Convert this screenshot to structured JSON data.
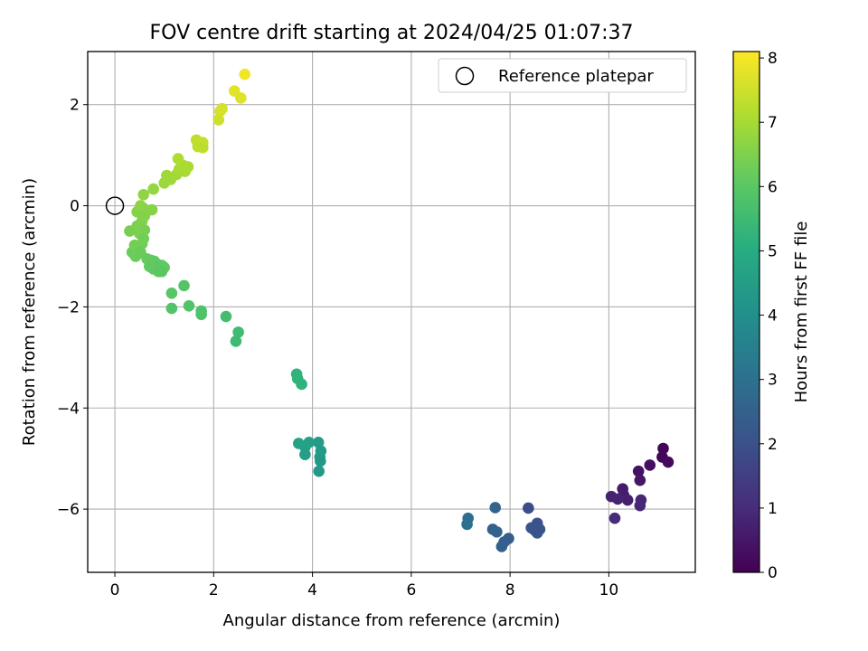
{
  "chart_data": {
    "type": "scatter",
    "title": "FOV centre drift starting at 2024/04/25 01:07:37",
    "xlabel": "Angular distance from reference (arcmin)",
    "ylabel": "Rotation from reference (arcmin)",
    "xlim": [
      -0.55,
      11.75
    ],
    "ylim": [
      -7.25,
      3.05
    ],
    "xticks": [
      0,
      2,
      4,
      6,
      8,
      10
    ],
    "yticks": [
      -6,
      -4,
      -2,
      0,
      2
    ],
    "grid": true,
    "legend": {
      "position": "top-right",
      "entries": [
        "Reference platepar"
      ]
    },
    "reference_point": {
      "x": 0,
      "y": 0,
      "label": "Reference platepar"
    },
    "colorbar": {
      "label": "Hours from first FF file",
      "min": 0,
      "max": 8.1,
      "ticks": [
        0,
        1,
        2,
        3,
        4,
        5,
        6,
        7,
        8
      ],
      "colormap": "viridis"
    },
    "points": [
      {
        "x": 11.1,
        "y": -4.8,
        "h": 0.1
      },
      {
        "x": 11.08,
        "y": -4.97,
        "h": 0.15
      },
      {
        "x": 11.2,
        "y": -5.07,
        "h": 0.2
      },
      {
        "x": 10.83,
        "y": -5.13,
        "h": 0.3
      },
      {
        "x": 10.6,
        "y": -5.25,
        "h": 0.4
      },
      {
        "x": 10.63,
        "y": -5.43,
        "h": 0.5
      },
      {
        "x": 10.28,
        "y": -5.6,
        "h": 0.6
      },
      {
        "x": 10.3,
        "y": -5.72,
        "h": 0.65
      },
      {
        "x": 10.38,
        "y": -5.82,
        "h": 0.7
      },
      {
        "x": 10.05,
        "y": -5.75,
        "h": 0.75
      },
      {
        "x": 10.18,
        "y": -5.8,
        "h": 0.8
      },
      {
        "x": 10.65,
        "y": -5.82,
        "h": 0.85
      },
      {
        "x": 10.63,
        "y": -5.93,
        "h": 0.9
      },
      {
        "x": 10.12,
        "y": -6.18,
        "h": 0.95
      },
      {
        "x": 8.37,
        "y": -5.98,
        "h": 1.9
      },
      {
        "x": 8.55,
        "y": -6.28,
        "h": 2.0
      },
      {
        "x": 8.43,
        "y": -6.37,
        "h": 2.05
      },
      {
        "x": 8.6,
        "y": -6.4,
        "h": 2.1
      },
      {
        "x": 8.55,
        "y": -6.47,
        "h": 2.15
      },
      {
        "x": 8.5,
        "y": -6.42,
        "h": 2.1
      },
      {
        "x": 7.7,
        "y": -5.97,
        "h": 2.6
      },
      {
        "x": 7.65,
        "y": -6.4,
        "h": 2.5
      },
      {
        "x": 7.73,
        "y": -6.45,
        "h": 2.55
      },
      {
        "x": 7.97,
        "y": -6.58,
        "h": 2.4
      },
      {
        "x": 7.88,
        "y": -6.65,
        "h": 2.45
      },
      {
        "x": 7.83,
        "y": -6.74,
        "h": 2.5
      },
      {
        "x": 7.15,
        "y": -6.18,
        "h": 2.9
      },
      {
        "x": 7.13,
        "y": -6.3,
        "h": 2.95
      },
      {
        "x": 4.17,
        "y": -4.85,
        "h": 4.4
      },
      {
        "x": 4.15,
        "y": -4.97,
        "h": 4.4
      },
      {
        "x": 4.12,
        "y": -4.68,
        "h": 4.45
      },
      {
        "x": 4.16,
        "y": -5.05,
        "h": 4.3
      },
      {
        "x": 4.13,
        "y": -5.25,
        "h": 4.35
      },
      {
        "x": 3.93,
        "y": -4.68,
        "h": 4.55
      },
      {
        "x": 3.85,
        "y": -4.77,
        "h": 4.6
      },
      {
        "x": 3.85,
        "y": -4.92,
        "h": 4.5
      },
      {
        "x": 3.72,
        "y": -4.7,
        "h": 4.65
      },
      {
        "x": 3.68,
        "y": -3.33,
        "h": 5.2
      },
      {
        "x": 3.7,
        "y": -3.42,
        "h": 5.25
      },
      {
        "x": 3.78,
        "y": -3.53,
        "h": 5.2
      },
      {
        "x": 2.25,
        "y": -2.19,
        "h": 5.6
      },
      {
        "x": 2.5,
        "y": -2.5,
        "h": 5.55
      },
      {
        "x": 2.45,
        "y": -2.68,
        "h": 5.5
      },
      {
        "x": 1.4,
        "y": -1.58,
        "h": 5.9
      },
      {
        "x": 1.15,
        "y": -1.73,
        "h": 5.95
      },
      {
        "x": 1.15,
        "y": -2.03,
        "h": 5.85
      },
      {
        "x": 1.5,
        "y": -1.98,
        "h": 5.85
      },
      {
        "x": 1.75,
        "y": -2.08,
        "h": 5.8
      },
      {
        "x": 1.75,
        "y": -2.15,
        "h": 5.8
      },
      {
        "x": 0.73,
        "y": -1.08,
        "h": 6.0
      },
      {
        "x": 0.8,
        "y": -1.1,
        "h": 6.05
      },
      {
        "x": 0.85,
        "y": -1.15,
        "h": 6.1
      },
      {
        "x": 0.9,
        "y": -1.2,
        "h": 6.0
      },
      {
        "x": 0.95,
        "y": -1.18,
        "h": 6.05
      },
      {
        "x": 1.0,
        "y": -1.22,
        "h": 6.1
      },
      {
        "x": 0.78,
        "y": -1.25,
        "h": 6.0
      },
      {
        "x": 0.88,
        "y": -1.3,
        "h": 6.05
      },
      {
        "x": 0.65,
        "y": -1.05,
        "h": 6.15
      },
      {
        "x": 0.95,
        "y": -1.3,
        "h": 6.0
      },
      {
        "x": 0.7,
        "y": -1.2,
        "h": 6.1
      },
      {
        "x": 0.35,
        "y": -0.92,
        "h": 6.2
      },
      {
        "x": 0.42,
        "y": -1.0,
        "h": 6.25
      },
      {
        "x": 0.55,
        "y": -0.75,
        "h": 6.3
      },
      {
        "x": 0.48,
        "y": -0.8,
        "h": 6.3
      },
      {
        "x": 0.4,
        "y": -0.78,
        "h": 6.35
      },
      {
        "x": 0.52,
        "y": -0.92,
        "h": 6.2
      },
      {
        "x": 0.3,
        "y": -0.5,
        "h": 6.4
      },
      {
        "x": 0.45,
        "y": -0.4,
        "h": 6.45
      },
      {
        "x": 0.55,
        "y": -0.3,
        "h": 6.5
      },
      {
        "x": 0.6,
        "y": -0.48,
        "h": 6.4
      },
      {
        "x": 0.5,
        "y": -0.55,
        "h": 6.45
      },
      {
        "x": 0.58,
        "y": -0.65,
        "h": 6.35
      },
      {
        "x": 0.45,
        "y": -0.12,
        "h": 6.55
      },
      {
        "x": 0.58,
        "y": -0.05,
        "h": 6.6
      },
      {
        "x": 0.52,
        "y": 0.0,
        "h": 6.65
      },
      {
        "x": 0.75,
        "y": -0.08,
        "h": 6.6
      },
      {
        "x": 0.6,
        "y": -0.2,
        "h": 6.55
      },
      {
        "x": 0.58,
        "y": 0.22,
        "h": 6.7
      },
      {
        "x": 0.78,
        "y": 0.33,
        "h": 6.75
      },
      {
        "x": 1.0,
        "y": 0.45,
        "h": 6.85
      },
      {
        "x": 1.05,
        "y": 0.6,
        "h": 6.9
      },
      {
        "x": 1.13,
        "y": 0.52,
        "h": 6.9
      },
      {
        "x": 1.25,
        "y": 0.62,
        "h": 6.95
      },
      {
        "x": 1.3,
        "y": 0.72,
        "h": 7.0
      },
      {
        "x": 1.42,
        "y": 0.68,
        "h": 7.0
      },
      {
        "x": 1.38,
        "y": 0.8,
        "h": 7.05
      },
      {
        "x": 1.48,
        "y": 0.77,
        "h": 7.05
      },
      {
        "x": 1.28,
        "y": 0.93,
        "h": 7.1
      },
      {
        "x": 1.65,
        "y": 1.3,
        "h": 7.3
      },
      {
        "x": 1.7,
        "y": 1.22,
        "h": 7.35
      },
      {
        "x": 1.78,
        "y": 1.25,
        "h": 7.35
      },
      {
        "x": 1.68,
        "y": 1.17,
        "h": 7.3
      },
      {
        "x": 1.78,
        "y": 1.15,
        "h": 7.3
      },
      {
        "x": 2.1,
        "y": 1.7,
        "h": 7.5
      },
      {
        "x": 2.13,
        "y": 1.87,
        "h": 7.55
      },
      {
        "x": 2.17,
        "y": 1.92,
        "h": 7.6
      },
      {
        "x": 2.42,
        "y": 2.27,
        "h": 7.75
      },
      {
        "x": 2.55,
        "y": 2.13,
        "h": 7.7
      },
      {
        "x": 2.63,
        "y": 2.6,
        "h": 7.95
      }
    ]
  }
}
